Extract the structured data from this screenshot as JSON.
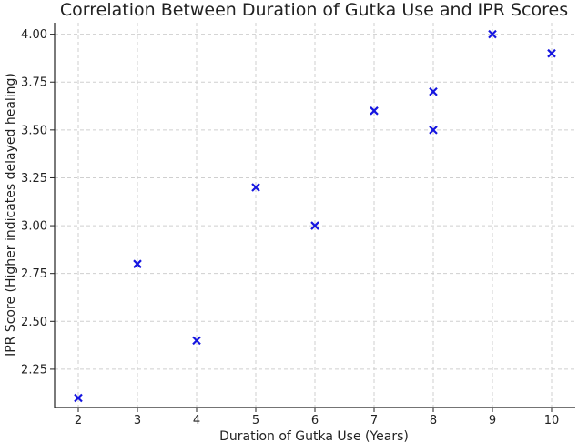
{
  "chart_data": {
    "type": "scatter",
    "title": "Correlation Between Duration of Gutka Use and IPR Scores",
    "xlabel": "Duration of Gutka Use (Years)",
    "ylabel": "IPR Score (Higher indicates delayed healing)",
    "xlim": [
      1.6,
      10.4
    ],
    "ylim": [
      2.05,
      4.06
    ],
    "x_ticks": [
      2,
      3,
      4,
      5,
      6,
      7,
      8,
      9,
      10
    ],
    "x_tick_labels": [
      "2",
      "3",
      "4",
      "5",
      "6",
      "7",
      "8",
      "9",
      "10"
    ],
    "y_ticks": [
      2.25,
      2.5,
      2.75,
      3.0,
      3.25,
      3.5,
      3.75,
      4.0
    ],
    "y_tick_labels": [
      "2.25",
      "2.50",
      "2.75",
      "3.00",
      "3.25",
      "3.50",
      "3.75",
      "4.00"
    ],
    "grid": true,
    "marker": "x",
    "marker_color": "#1515e0",
    "points": [
      {
        "x": 2,
        "y": 2.1
      },
      {
        "x": 3,
        "y": 2.8
      },
      {
        "x": 4,
        "y": 2.4
      },
      {
        "x": 5,
        "y": 3.2
      },
      {
        "x": 6,
        "y": 3.0
      },
      {
        "x": 7,
        "y": 3.6
      },
      {
        "x": 8,
        "y": 3.7
      },
      {
        "x": 8,
        "y": 3.5
      },
      {
        "x": 9,
        "y": 4.0
      },
      {
        "x": 10,
        "y": 3.9
      }
    ]
  }
}
